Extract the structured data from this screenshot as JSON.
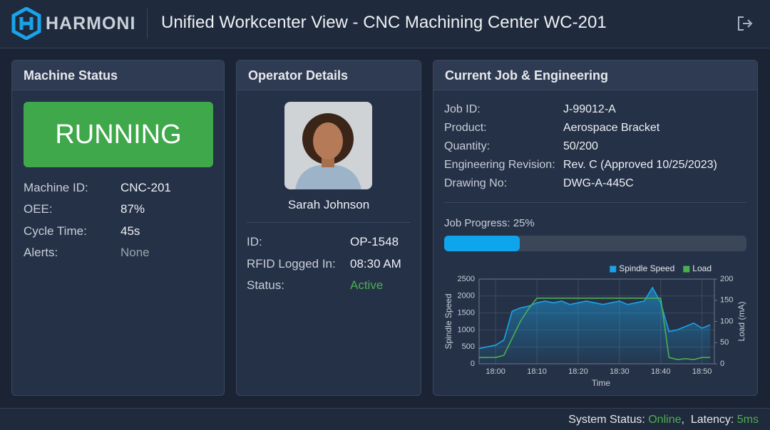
{
  "header": {
    "brand": "HARMONI",
    "title": "Unified Workcenter View - CNC Machining Center WC-201"
  },
  "machine_status": {
    "title": "Machine Status",
    "state": "RUNNING",
    "fields": [
      {
        "label": "Machine ID:",
        "value": "CNC-201"
      },
      {
        "label": "OEE:",
        "value": "87%"
      },
      {
        "label": "Cycle Time:",
        "value": "45s"
      },
      {
        "label": "Alerts:",
        "value": "None"
      }
    ]
  },
  "operator": {
    "title": "Operator Details",
    "name": "Sarah Johnson",
    "fields": [
      {
        "label": "ID:",
        "value": "OP-1548"
      },
      {
        "label": "RFID Logged In:",
        "value": "08:30 AM"
      },
      {
        "label": "Status:",
        "value": "Active"
      }
    ]
  },
  "job": {
    "title": "Current Job & Engineering",
    "fields": [
      {
        "label": "Job ID:",
        "value": "J-99012-A"
      },
      {
        "label": "Product:",
        "value": "Aerospace Bracket"
      },
      {
        "label": "Quantity:",
        "value": "50/200"
      },
      {
        "label": "Engineering Revision:",
        "value": "Rev. C (Approved 10/25/2023)"
      },
      {
        "label": "Drawing No:",
        "value": "DWG-A-445C"
      }
    ],
    "progress": {
      "label": "Job Progress:",
      "value": 25,
      "value_label": "25%"
    }
  },
  "chart_data": {
    "type": "line",
    "x_label": "Time",
    "y_label": "Spindle Speed",
    "y2_label": "Load (mA)",
    "x": [
      "17:56",
      "17:58",
      "18:00",
      "18:02",
      "18:04",
      "18:06",
      "18:08",
      "18:10",
      "18:12",
      "18:14",
      "18:16",
      "18:18",
      "18:20",
      "18:22",
      "18:24",
      "18:26",
      "18:28",
      "18:30",
      "18:32",
      "18:34",
      "18:36",
      "18:38",
      "18:40",
      "18:42",
      "18:44",
      "18:46",
      "18:48",
      "18:50",
      "18:52"
    ],
    "series": [
      {
        "name": "Spindle Speed",
        "color": "#1aa3e8",
        "values": [
          450,
          500,
          550,
          700,
          1550,
          1650,
          1700,
          1800,
          1850,
          1800,
          1850,
          1750,
          1800,
          1850,
          1800,
          1750,
          1800,
          1850,
          1750,
          1800,
          1850,
          2250,
          1800,
          950,
          1000,
          1100,
          1200,
          1050,
          1150
        ]
      },
      {
        "name": "Load",
        "color": "#4caf50",
        "axis": "y2",
        "values": [
          15,
          15,
          15,
          20,
          60,
          100,
          130,
          155,
          155,
          155,
          155,
          155,
          155,
          155,
          155,
          155,
          155,
          155,
          155,
          155,
          155,
          155,
          155,
          15,
          10,
          12,
          10,
          15,
          15
        ]
      }
    ],
    "xlim": [
      "17:56",
      "18:53"
    ],
    "xticks": [
      "18:00",
      "18:10",
      "18:20",
      "18:30",
      "18:40",
      "18:50"
    ],
    "ylim": [
      0,
      2500
    ],
    "yticks": [
      0,
      500,
      1000,
      1500,
      2000,
      2500
    ],
    "y2lim": [
      0,
      200
    ],
    "y2ticks": [
      0,
      50,
      100,
      150,
      200
    ],
    "grid": true,
    "legend": "top-right"
  },
  "footer": {
    "status_label": "System Status:",
    "status": "Online",
    "latency_label": ",  Latency:",
    "latency": "5ms"
  }
}
